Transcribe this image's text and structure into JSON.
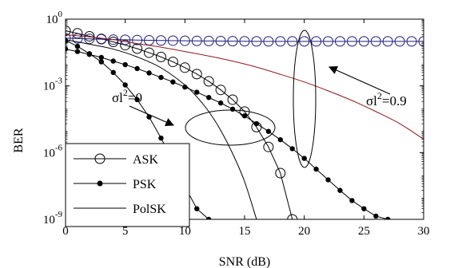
{
  "chart_data": {
    "type": "line",
    "xlabel": "SNR (dB)",
    "ylabel": "BER",
    "x_scale": "linear",
    "y_scale": "log",
    "xlim": [
      0,
      30
    ],
    "ylim": [
      1e-09,
      1
    ],
    "x_ticks": [
      0,
      5,
      10,
      15,
      20,
      25,
      30
    ],
    "y_ticks": [
      {
        "base": "10",
        "exp": "0",
        "value": 1
      },
      {
        "base": "10",
        "exp": "-3",
        "value": 0.001
      },
      {
        "base": "10",
        "exp": "-6",
        "value": 1e-06
      },
      {
        "base": "10",
        "exp": "-9",
        "value": 1e-09
      }
    ],
    "grid": false,
    "legend_position": "bottom-left",
    "legend": [
      {
        "label": "ASK",
        "marker": "open-circle"
      },
      {
        "label": "PSK",
        "marker": "filled-dot"
      },
      {
        "label": "PolSK",
        "marker": "none"
      }
    ],
    "annotations": [
      {
        "text": "σl²=0",
        "sigma": "σ",
        "l": "l",
        "sup": "2",
        "rest": "=0"
      },
      {
        "text": "σl²=0.9",
        "sigma": "σ",
        "l": "l",
        "sup": "2",
        "rest": "=0.9"
      }
    ],
    "series": [
      {
        "key": "ask0",
        "marker": "open-circle",
        "color": "#000000",
        "x": [
          0,
          1,
          2,
          3,
          4,
          5,
          6,
          7,
          8,
          9,
          10,
          11,
          12,
          13,
          14,
          15,
          16,
          17,
          18,
          19
        ],
        "y": [
          0.3,
          0.23,
          0.17,
          0.13,
          0.095,
          0.068,
          0.047,
          0.031,
          0.02,
          0.012,
          0.0066,
          0.0034,
          0.0016,
          0.00066,
          0.00024,
          7e-05,
          1.4e-05,
          1.8e-06,
          1.2e-07,
          1e-09
        ]
      },
      {
        "key": "ask09",
        "marker": "open-circle",
        "color": "#1a1a7a",
        "x": [
          0,
          1,
          2,
          3,
          4,
          5,
          6,
          7,
          8,
          9,
          10,
          11,
          12,
          13,
          14,
          15,
          16,
          17,
          18,
          19,
          20,
          21,
          22,
          23,
          24,
          25,
          26,
          27,
          28,
          29,
          30
        ],
        "y": [
          0.14,
          0.135,
          0.13,
          0.125,
          0.12,
          0.118,
          0.115,
          0.112,
          0.11,
          0.108,
          0.106,
          0.105,
          0.104,
          0.103,
          0.102,
          0.101,
          0.1,
          0.1,
          0.1,
          0.1,
          0.1,
          0.1,
          0.1,
          0.1,
          0.1,
          0.1,
          0.1,
          0.1,
          0.1,
          0.1,
          0.1
        ]
      },
      {
        "key": "psk0",
        "marker": "filled-dot",
        "color": "#000000",
        "x": [
          0,
          1,
          2,
          3,
          4,
          5,
          6,
          7,
          8,
          9,
          10,
          11,
          12
        ],
        "y": [
          0.11,
          0.06,
          0.028,
          0.012,
          0.004,
          0.0011,
          0.00024,
          4e-05,
          4.5e-06,
          4e-07,
          3e-08,
          3e-09,
          1e-09
        ]
      },
      {
        "key": "psk09",
        "marker": "filled-dot",
        "color": "#000000",
        "x": [
          0,
          1,
          2,
          3,
          4,
          5,
          6,
          7,
          8,
          9,
          10,
          11,
          12,
          13,
          14,
          15,
          16,
          17,
          18,
          19,
          20,
          21,
          22,
          23,
          24,
          25,
          26,
          27
        ],
        "y": [
          0.045,
          0.035,
          0.026,
          0.019,
          0.013,
          0.009,
          0.006,
          0.0038,
          0.0024,
          0.0015,
          0.00088,
          0.00052,
          0.0003,
          0.00017,
          9e-05,
          4.5e-05,
          2e-05,
          9e-06,
          3.8e-06,
          1.5e-06,
          5.5e-07,
          1.8e-07,
          6e-08,
          2e-08,
          7e-09,
          3e-09,
          1.4e-09,
          1e-09
        ]
      },
      {
        "key": "polsk0",
        "marker": "none",
        "color": "#000000",
        "x": [
          0,
          2,
          4,
          6,
          8,
          10,
          11,
          12,
          13,
          14,
          15,
          16
        ],
        "y": [
          0.12,
          0.075,
          0.045,
          0.02,
          0.0065,
          0.0011,
          0.00032,
          7e-05,
          1e-05,
          9e-07,
          5e-08,
          1e-09
        ]
      },
      {
        "key": "polsk09",
        "marker": "none",
        "color": "#8b1a1a",
        "x": [
          0,
          2,
          4,
          6,
          8,
          10,
          12,
          14,
          16,
          18,
          20,
          22,
          24,
          26,
          28,
          30
        ],
        "y": [
          0.2,
          0.16,
          0.12,
          0.08,
          0.055,
          0.035,
          0.022,
          0.013,
          0.007,
          0.0033,
          0.0015,
          0.0006,
          0.00022,
          7e-05,
          2e-05,
          4e-06
        ]
      }
    ]
  }
}
